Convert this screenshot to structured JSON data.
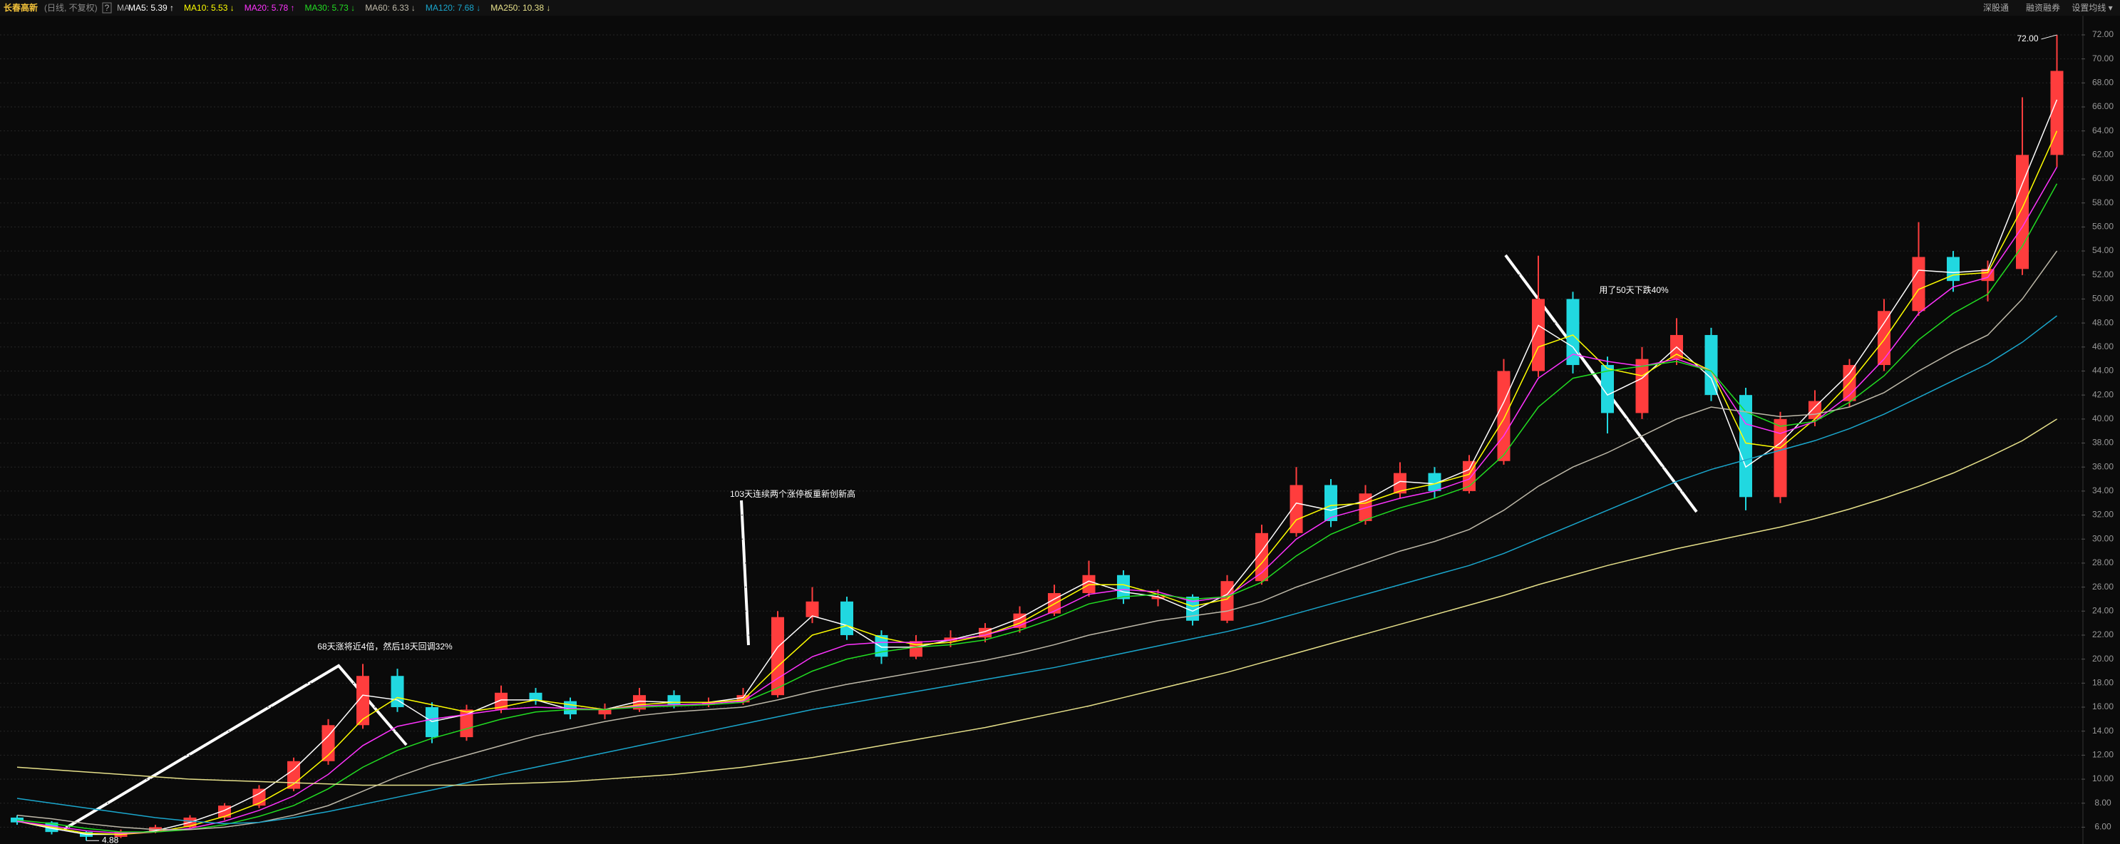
{
  "header": {
    "title": "长春高新",
    "subtitle": "(日线, 不复权)",
    "help": "?",
    "ma_icon": "MA",
    "links": [
      "深股通",
      "融资融券",
      "设置均线 ▾"
    ]
  },
  "chart_data": {
    "type": "candlestick",
    "annotations": [
      {
        "text": "68天涨将近4倍，然后18天回调32%"
      },
      {
        "text": "103天连续两个涨停板重新创新高"
      },
      {
        "text": "用了50天下跌40%"
      }
    ],
    "high_label": {
      "value": 72,
      "label": "72.00"
    },
    "low_label": {
      "value": 4.88,
      "label": "4.88"
    },
    "up_color": "#ff3d3d",
    "down_color": "#21d8e0",
    "grid": true,
    "ylim": [
      4.6,
      73.6
    ],
    "yticks": [
      {
        "value": 6,
        "label": "6.00"
      },
      {
        "value": 8,
        "label": "8.00"
      },
      {
        "value": 10,
        "label": "10.00"
      },
      {
        "value": 12,
        "label": "12.00"
      },
      {
        "value": 14,
        "label": "14.00"
      },
      {
        "value": 16,
        "label": "16.00"
      },
      {
        "value": 18,
        "label": "18.00"
      },
      {
        "value": 20,
        "label": "20.00"
      },
      {
        "value": 22,
        "label": "22.00"
      },
      {
        "value": 24,
        "label": "24.00"
      },
      {
        "value": 26,
        "label": "26.00"
      },
      {
        "value": 28,
        "label": "28.00"
      },
      {
        "value": 30,
        "label": "30.00"
      },
      {
        "value": 32,
        "label": "32.00"
      },
      {
        "value": 34,
        "label": "34.00"
      },
      {
        "value": 36,
        "label": "36.00"
      },
      {
        "value": 38,
        "label": "38.00"
      },
      {
        "value": 40,
        "label": "40.00"
      },
      {
        "value": 42,
        "label": "42.00"
      },
      {
        "value": 44,
        "label": "44.00"
      },
      {
        "value": 46,
        "label": "46.00"
      },
      {
        "value": 48,
        "label": "48.00"
      },
      {
        "value": 50,
        "label": "50.00"
      },
      {
        "value": 52,
        "label": "52.00"
      },
      {
        "value": 54,
        "label": "54.00"
      },
      {
        "value": 56,
        "label": "56.00"
      },
      {
        "value": 58,
        "label": "58.00"
      },
      {
        "value": 60,
        "label": "60.00"
      },
      {
        "value": 62,
        "label": "62.00"
      },
      {
        "value": 64,
        "label": "64.00"
      },
      {
        "value": 66,
        "label": "66.00"
      },
      {
        "value": 68,
        "label": "68.00"
      },
      {
        "value": 70,
        "label": "70.00"
      },
      {
        "value": 72,
        "label": "72.00"
      }
    ],
    "ohlc": [
      [
        6.8,
        7.0,
        6.2,
        6.4
      ],
      [
        6.4,
        6.5,
        5.4,
        5.6
      ],
      [
        5.6,
        5.7,
        4.88,
        5.2
      ],
      [
        5.2,
        5.8,
        5.1,
        5.6
      ],
      [
        5.6,
        6.2,
        5.5,
        6.0
      ],
      [
        6.0,
        7.0,
        5.9,
        6.8
      ],
      [
        6.8,
        8.0,
        6.6,
        7.8
      ],
      [
        7.8,
        9.5,
        7.6,
        9.2
      ],
      [
        9.2,
        11.8,
        9.0,
        11.5
      ],
      [
        11.5,
        15.0,
        11.2,
        14.5
      ],
      [
        14.5,
        19.6,
        14.2,
        18.6
      ],
      [
        18.6,
        19.2,
        15.6,
        16.0
      ],
      [
        16.0,
        16.4,
        13.0,
        13.5
      ],
      [
        13.5,
        16.2,
        13.2,
        15.8
      ],
      [
        15.8,
        17.8,
        15.5,
        17.2
      ],
      [
        17.2,
        17.6,
        16.2,
        16.5
      ],
      [
        16.5,
        16.8,
        15.0,
        15.4
      ],
      [
        15.4,
        16.3,
        15.0,
        15.8
      ],
      [
        15.8,
        17.6,
        15.6,
        17.0
      ],
      [
        17.0,
        17.4,
        15.9,
        16.2
      ],
      [
        16.2,
        16.8,
        16.0,
        16.4
      ],
      [
        16.4,
        17.6,
        16.2,
        17.0
      ],
      [
        17.0,
        24.0,
        16.8,
        23.5
      ],
      [
        23.5,
        26.0,
        23.0,
        24.8
      ],
      [
        24.8,
        25.2,
        21.6,
        22.0
      ],
      [
        22.0,
        22.4,
        19.6,
        20.2
      ],
      [
        20.2,
        22.0,
        20.0,
        21.5
      ],
      [
        21.5,
        22.4,
        21.0,
        21.8
      ],
      [
        21.8,
        23.0,
        21.4,
        22.6
      ],
      [
        22.6,
        24.4,
        22.2,
        23.8
      ],
      [
        23.8,
        26.2,
        23.6,
        25.5
      ],
      [
        25.5,
        28.2,
        25.2,
        27.0
      ],
      [
        27.0,
        27.4,
        24.6,
        25.0
      ],
      [
        25.0,
        25.8,
        24.4,
        25.2
      ],
      [
        25.2,
        25.4,
        22.8,
        23.2
      ],
      [
        23.2,
        27.0,
        23.0,
        26.5
      ],
      [
        26.5,
        31.2,
        26.2,
        30.5
      ],
      [
        30.5,
        36.0,
        30.2,
        34.5
      ],
      [
        34.5,
        35.0,
        31.0,
        31.5
      ],
      [
        31.5,
        34.5,
        31.2,
        33.8
      ],
      [
        33.8,
        36.4,
        33.4,
        35.5
      ],
      [
        35.5,
        36.0,
        33.4,
        34.0
      ],
      [
        34.0,
        37.0,
        33.8,
        36.5
      ],
      [
        36.5,
        45.0,
        36.2,
        44.0
      ],
      [
        44.0,
        53.6,
        43.5,
        50.0
      ],
      [
        50.0,
        50.6,
        43.8,
        44.5
      ],
      [
        44.5,
        45.2,
        38.8,
        40.5
      ],
      [
        40.5,
        46.0,
        40.0,
        45.0
      ],
      [
        45.0,
        48.4,
        44.5,
        47.0
      ],
      [
        47.0,
        47.6,
        41.5,
        42.0
      ],
      [
        42.0,
        42.6,
        32.4,
        33.5
      ],
      [
        33.5,
        40.6,
        33.0,
        40.0
      ],
      [
        40.0,
        42.4,
        39.4,
        41.5
      ],
      [
        41.5,
        45.0,
        41.0,
        44.5
      ],
      [
        44.5,
        50.0,
        44.0,
        49.0
      ],
      [
        49.0,
        56.4,
        48.6,
        53.5
      ],
      [
        53.5,
        54.0,
        50.6,
        51.5
      ],
      [
        51.5,
        53.2,
        49.8,
        52.5
      ],
      [
        52.5,
        66.8,
        52.0,
        62.0
      ],
      [
        62.0,
        72.0,
        61.0,
        69.0
      ]
    ],
    "series": [
      {
        "name": "MA5: 5.39 ↑",
        "color": "#ffffff",
        "values": [
          6.5,
          5.9,
          5.4,
          5.4,
          5.7,
          6.4,
          7.4,
          8.8,
          10.8,
          13.6,
          17.0,
          16.6,
          14.8,
          15.4,
          16.6,
          16.6,
          15.8,
          15.8,
          16.5,
          16.4,
          16.4,
          16.8,
          21.0,
          23.6,
          22.8,
          21.0,
          21.0,
          21.6,
          22.3,
          23.4,
          25.0,
          26.5,
          25.6,
          25.2,
          24.0,
          25.4,
          29.0,
          33.0,
          32.4,
          33.2,
          34.8,
          34.6,
          35.8,
          41.4,
          47.8,
          46.0,
          42.0,
          43.4,
          46.0,
          43.4,
          36.0,
          38.0,
          41.0,
          43.8,
          48.0,
          52.4,
          52.2,
          52.4,
          59.6,
          66.6
        ]
      },
      {
        "name": "MA10: 5.53 ↓",
        "color": "#ffff00",
        "values": [
          6.5,
          6.0,
          5.5,
          5.4,
          5.6,
          6.1,
          6.9,
          8.0,
          9.6,
          12.0,
          15.0,
          16.8,
          16.2,
          15.6,
          16.0,
          16.6,
          16.2,
          15.8,
          16.2,
          16.4,
          16.4,
          16.6,
          19.4,
          22.0,
          22.8,
          21.8,
          21.2,
          21.4,
          22.0,
          23.0,
          24.6,
          26.2,
          26.2,
          25.4,
          24.4,
          25.0,
          28.0,
          31.6,
          32.8,
          33.0,
          34.0,
          34.6,
          35.4,
          40.0,
          46.0,
          47.0,
          44.2,
          43.6,
          45.4,
          44.0,
          38.0,
          37.6,
          40.0,
          43.0,
          46.6,
          50.8,
          52.0,
          52.2,
          57.6,
          64.0
        ]
      },
      {
        "name": "MA20: 5.78 ↑",
        "color": "#ff33ff",
        "values": [
          6.5,
          6.1,
          5.7,
          5.5,
          5.6,
          5.9,
          6.5,
          7.4,
          8.6,
          10.4,
          12.8,
          14.4,
          15.0,
          15.4,
          15.8,
          16.0,
          15.9,
          15.8,
          16.1,
          16.2,
          16.3,
          16.5,
          18.4,
          20.2,
          21.2,
          21.4,
          21.4,
          21.6,
          22.0,
          22.8,
          24.0,
          25.4,
          25.8,
          25.6,
          24.8,
          25.2,
          27.2,
          30.0,
          31.8,
          32.6,
          33.4,
          34.0,
          35.0,
          38.6,
          43.4,
          45.4,
          44.8,
          44.4,
          45.0,
          44.0,
          39.6,
          38.8,
          39.8,
          42.0,
          45.0,
          48.8,
          51.0,
          51.8,
          56.0,
          61.0
        ]
      },
      {
        "name": "MA30: 5.73 ↓",
        "color": "#22dd22",
        "values": [
          6.6,
          6.3,
          5.9,
          5.6,
          5.6,
          5.8,
          6.2,
          6.9,
          7.8,
          9.2,
          11.0,
          12.4,
          13.4,
          14.2,
          15.0,
          15.6,
          15.8,
          15.8,
          16.0,
          16.1,
          16.2,
          16.4,
          17.6,
          19.0,
          20.0,
          20.6,
          21.0,
          21.2,
          21.6,
          22.4,
          23.4,
          24.6,
          25.2,
          25.4,
          25.0,
          25.2,
          26.4,
          28.6,
          30.4,
          31.6,
          32.6,
          33.4,
          34.4,
          37.0,
          41.0,
          43.4,
          44.0,
          44.4,
          44.8,
          44.0,
          40.6,
          39.4,
          39.8,
          41.4,
          43.6,
          46.6,
          48.8,
          50.4,
          54.4,
          59.6
        ]
      },
      {
        "name": "MA60: 6.33 ↓",
        "color": "#bdb8a8",
        "values": [
          7.0,
          6.7,
          6.3,
          6.0,
          5.8,
          5.8,
          6.0,
          6.4,
          7.0,
          7.8,
          9.0,
          10.2,
          11.2,
          12.0,
          12.8,
          13.6,
          14.2,
          14.8,
          15.3,
          15.6,
          15.8,
          16.0,
          16.6,
          17.3,
          17.9,
          18.4,
          18.9,
          19.4,
          19.9,
          20.5,
          21.2,
          22.0,
          22.6,
          23.2,
          23.6,
          24.0,
          24.8,
          26.0,
          27.0,
          28.0,
          29.0,
          29.8,
          30.8,
          32.4,
          34.4,
          36.0,
          37.2,
          38.6,
          40.0,
          41.0,
          40.6,
          40.2,
          40.4,
          41.0,
          42.2,
          44.0,
          45.6,
          47.0,
          50.0,
          54.0
        ]
      },
      {
        "name": "MA120: 7.68 ↓",
        "color": "#1aa6cc",
        "values": [
          8.4,
          8.0,
          7.6,
          7.2,
          6.8,
          6.5,
          6.3,
          6.4,
          6.8,
          7.3,
          7.9,
          8.5,
          9.1,
          9.7,
          10.4,
          11.0,
          11.6,
          12.2,
          12.8,
          13.4,
          14.0,
          14.6,
          15.2,
          15.8,
          16.3,
          16.8,
          17.3,
          17.8,
          18.3,
          18.8,
          19.3,
          19.9,
          20.5,
          21.1,
          21.7,
          22.3,
          23.0,
          23.8,
          24.6,
          25.4,
          26.2,
          27.0,
          27.8,
          28.8,
          30.0,
          31.2,
          32.4,
          33.6,
          34.8,
          35.8,
          36.6,
          37.4,
          38.2,
          39.2,
          40.4,
          41.8,
          43.2,
          44.6,
          46.4,
          48.6
        ]
      },
      {
        "name": "MA250: 10.38 ↓",
        "color": "#e6e08a",
        "values": [
          11.0,
          10.8,
          10.6,
          10.4,
          10.2,
          10.0,
          9.9,
          9.8,
          9.7,
          9.6,
          9.5,
          9.5,
          9.5,
          9.5,
          9.6,
          9.7,
          9.8,
          10.0,
          10.2,
          10.4,
          10.7,
          11.0,
          11.4,
          11.8,
          12.3,
          12.8,
          13.3,
          13.8,
          14.3,
          14.9,
          15.5,
          16.1,
          16.8,
          17.5,
          18.2,
          18.9,
          19.7,
          20.5,
          21.3,
          22.1,
          22.9,
          23.7,
          24.5,
          25.3,
          26.2,
          27.0,
          27.8,
          28.5,
          29.2,
          29.8,
          30.4,
          31.0,
          31.7,
          32.5,
          33.4,
          34.4,
          35.5,
          36.8,
          38.2,
          40.0
        ]
      }
    ]
  }
}
